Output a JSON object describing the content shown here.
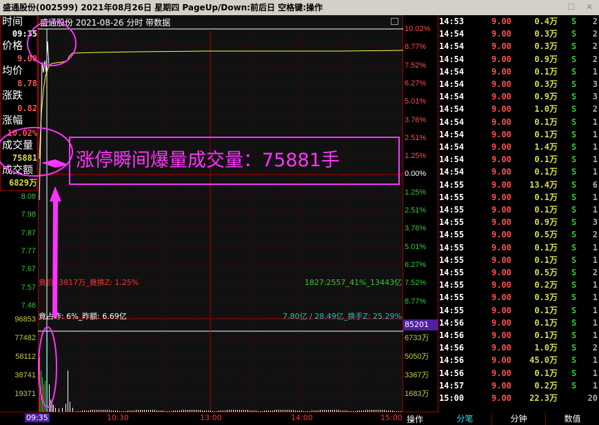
{
  "window": {
    "title": "盛通股份(002599) 2021年08月26日 星期四 PageUp/Down:前后日 空格键:操作",
    "restore_icon": "restore-icon",
    "close_icon": "close-icon"
  },
  "chart_header": "盛通股份  2021-08-26 分时 带数据",
  "info": {
    "time_label": "时间",
    "time": "09:35",
    "price_label": "价格",
    "price": "9.00",
    "avg_label": "均价",
    "avg": "8.78",
    "change_label": "涨跌",
    "change": "0.82",
    "pct_label": "涨幅",
    "pct": "10.02%",
    "vol_label": "成交量",
    "vol": "75881",
    "amt_label": "成交额",
    "amt": "6829万"
  },
  "price_axis_left": [
    "8.08",
    "7.98",
    "7.87",
    "7.77",
    "7.67",
    "7.57",
    "7.46"
  ],
  "price_axis_right": [
    "10.02%",
    "8.77%",
    "7.52%",
    "6.27%",
    "5.01%",
    "3.76%",
    "2.51%",
    "1.25%",
    "0.00%",
    "1.25%",
    "2.51%",
    "3.76%",
    "5.01%",
    "6.27%",
    "7.52%",
    "8.77%"
  ],
  "vol_axis_left": [
    "96853",
    "77482",
    "58112",
    "38741",
    "19371"
  ],
  "vol_axis_right": [
    "6733万",
    "5050万",
    "3367万",
    "1683万"
  ],
  "vol_cursor_value": "85201",
  "time_axis": [
    "09:35",
    "10:30",
    "13:00",
    "14:00",
    "15:00"
  ],
  "annotations": {
    "auction": "竟价: 3817万_竟换Z: 1.25%",
    "ratio": "1827:2557_41%_13443亿",
    "auction_ratio": "竟占昨: 6%_昨额: 6.69亿",
    "turnover": "7.80亿 / 28.49亿_换手Z: 25.29%",
    "callout": "涨停瞬间爆量成交量：75881手"
  },
  "colors": {
    "up": "#ff5050",
    "down": "#33cc33",
    "volume": "#cccc44",
    "callout": "#ff33ff",
    "price_line": "#ffff40",
    "tab_active": "#33dddd"
  },
  "action_label": "操作",
  "ticks": [
    [
      "14:53",
      "9.00",
      "0.4万",
      "S",
      "2"
    ],
    [
      "14:54",
      "9.00",
      "0.3万",
      "S",
      "2"
    ],
    [
      "14:54",
      "9.00",
      "0.3万",
      "S",
      "2"
    ],
    [
      "14:54",
      "9.00",
      "0.9万",
      "S",
      "2"
    ],
    [
      "14:54",
      "9.00",
      "0.1万",
      "S",
      "1"
    ],
    [
      "14:54",
      "9.00",
      "0.3万",
      "S",
      "3"
    ],
    [
      "14:54",
      "9.00",
      "0.9万",
      "S",
      "3"
    ],
    [
      "14:54",
      "9.00",
      "1.0万",
      "S",
      "2"
    ],
    [
      "14:54",
      "9.00",
      "0.1万",
      "S",
      "1"
    ],
    [
      "14:54",
      "9.00",
      "0.1万",
      "S",
      "1"
    ],
    [
      "14:54",
      "9.00",
      "1.4万",
      "S",
      "1"
    ],
    [
      "14:54",
      "9.00",
      "0.1万",
      "S",
      "1"
    ],
    [
      "14:54",
      "9.00",
      "0.1万",
      "S",
      "1"
    ],
    [
      "14:55",
      "9.00",
      "13.4万",
      "S",
      "6"
    ],
    [
      "14:55",
      "9.00",
      "0.1万",
      "S",
      "1"
    ],
    [
      "14:55",
      "9.00",
      "0.1万",
      "S",
      "1"
    ],
    [
      "14:55",
      "9.00",
      "0.9万",
      "S",
      "3"
    ],
    [
      "14:55",
      "9.00",
      "0.5万",
      "S",
      "2"
    ],
    [
      "14:55",
      "9.00",
      "0.1万",
      "S",
      "1"
    ],
    [
      "14:55",
      "9.00",
      "0.1万",
      "S",
      "1"
    ],
    [
      "14:55",
      "9.00",
      "0.5万",
      "S",
      "2"
    ],
    [
      "14:55",
      "9.00",
      "0.2万",
      "S",
      "1"
    ],
    [
      "14:55",
      "9.00",
      "0.3万",
      "S",
      "1"
    ],
    [
      "14:55",
      "9.00",
      "0.1万",
      "S",
      "1"
    ],
    [
      "14:56",
      "9.00",
      "0.1万",
      "S",
      "1"
    ],
    [
      "14:56",
      "9.00",
      "0.1万",
      "S",
      "1"
    ],
    [
      "14:56",
      "9.00",
      "1.0万",
      "S",
      "2"
    ],
    [
      "14:56",
      "9.00",
      "45.0万",
      "S",
      "1"
    ],
    [
      "14:56",
      "9.00",
      "0.1万",
      "S",
      "1"
    ],
    [
      "14:57",
      "9.00",
      "0.2万",
      "S",
      "1"
    ],
    [
      "15:00",
      "9.00",
      "22.3万",
      "",
      "20"
    ]
  ],
  "tabs": [
    "分笔",
    "分钟",
    "数值"
  ]
}
